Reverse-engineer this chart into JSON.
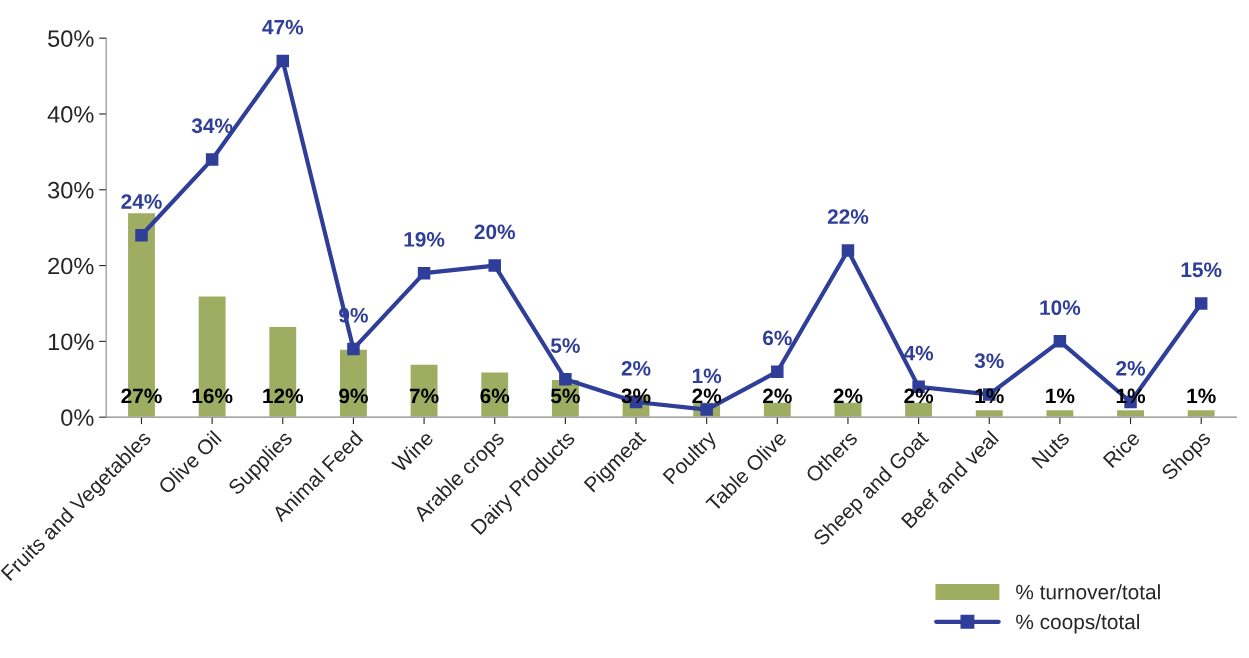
{
  "chart_data": {
    "type": "bar",
    "categories": [
      "Fruits and Vegetables",
      "Olive Oil",
      "Supplies",
      "Animal Feed",
      "Wine",
      "Arable crops",
      "Dairy Products",
      "Pigmeat",
      "Poultry",
      "Table Olive",
      "Others",
      "Sheep and Goat",
      "Beef and veal",
      "Nuts",
      "Rice",
      "Shops"
    ],
    "series": [
      {
        "name": "% turnover/total",
        "color": "#9fad63",
        "values": [
          27,
          16,
          12,
          9,
          7,
          6,
          5,
          3,
          2,
          2,
          2,
          2,
          1,
          1,
          1,
          1
        ],
        "value_labels": [
          "27%",
          "16%",
          "12%",
          "9%",
          "7%",
          "6%",
          "5%",
          "3%",
          "2%",
          "2%",
          "2%",
          "2%",
          "1%",
          "1%",
          "1%",
          "1%"
        ]
      },
      {
        "name": "% coops/total",
        "type": "line",
        "color": "#2f3e98",
        "marker": "square",
        "values": [
          24,
          34,
          47,
          9,
          19,
          20,
          5,
          2,
          1,
          6,
          22,
          4,
          3,
          10,
          2,
          15
        ],
        "value_labels": [
          "24%",
          "34%",
          "47%",
          "9%",
          "19%",
          "20%",
          "5%",
          "2%",
          "1%",
          "6%",
          "22%",
          "4%",
          "3%",
          "10%",
          "2%",
          "15%"
        ]
      }
    ],
    "ylim": [
      0,
      50
    ],
    "yticks": [
      {
        "value": 0,
        "label": "0%"
      },
      {
        "value": 10,
        "label": "10%"
      },
      {
        "value": 20,
        "label": "20%"
      },
      {
        "value": 30,
        "label": "30%"
      },
      {
        "value": 40,
        "label": "40%"
      },
      {
        "value": 50,
        "label": "50%"
      }
    ],
    "grid": false,
    "legend": "bottom right"
  }
}
